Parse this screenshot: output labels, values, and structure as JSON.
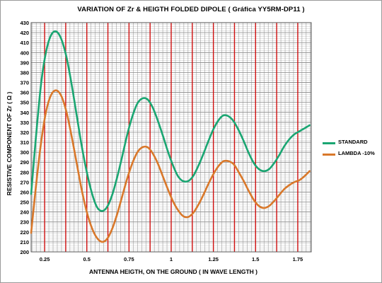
{
  "chart_data": {
    "type": "line",
    "title": "VARIATION OF Zr & HEIGTH FOLDED DIPOLE  ( Gráfica YY5RM-DP11 )",
    "xlabel": "ANTENNA HEIGTH, ON THE GROUND  ( IN WAVE LENGTH )",
    "ylabel": "RESISTIVE COMPONENT OF Zr ( Ω )",
    "xlim": [
      0.17,
      1.83
    ],
    "ylim": [
      200,
      430
    ],
    "x_ticks": [
      0.25,
      0.5,
      0.75,
      1,
      1.25,
      1.5,
      1.75
    ],
    "x_tick_labels": [
      "0.25",
      "0.5",
      "0.75",
      "1",
      "1.25",
      "1.5",
      "1.75"
    ],
    "y_ticks": [
      200,
      210,
      220,
      230,
      240,
      250,
      260,
      270,
      280,
      290,
      300,
      310,
      320,
      330,
      340,
      350,
      360,
      370,
      380,
      390,
      400,
      410,
      420,
      430
    ],
    "grid": true,
    "legend_position": "right",
    "series": [
      {
        "name": "STANDARD",
        "color": "#1aa672",
        "x": [
          0.17,
          0.2,
          0.23,
          0.26,
          0.29,
          0.32,
          0.35,
          0.38,
          0.41,
          0.44,
          0.47,
          0.5,
          0.53,
          0.56,
          0.59,
          0.62,
          0.65,
          0.68,
          0.71,
          0.74,
          0.77,
          0.8,
          0.83,
          0.86,
          0.89,
          0.92,
          0.95,
          0.98,
          1.01,
          1.04,
          1.07,
          1.1,
          1.13,
          1.16,
          1.19,
          1.22,
          1.25,
          1.28,
          1.31,
          1.34,
          1.37,
          1.4,
          1.43,
          1.46,
          1.49,
          1.52,
          1.55,
          1.58,
          1.61,
          1.64,
          1.67,
          1.7,
          1.73,
          1.76,
          1.79,
          1.82
        ],
        "values": [
          258,
          318,
          370,
          402,
          418,
          421,
          413,
          395,
          368,
          337,
          306,
          280,
          259,
          245,
          241,
          245,
          257,
          275,
          296,
          318,
          336,
          349,
          354,
          353,
          345,
          332,
          317,
          301,
          287,
          276,
          271,
          271,
          276,
          286,
          298,
          311,
          323,
          332,
          337,
          336,
          331,
          322,
          311,
          299,
          289,
          283,
          281,
          283,
          289,
          297,
          306,
          313,
          318,
          321,
          324,
          327
        ],
        "line": true
      },
      {
        "name": "LAMBDA -10%",
        "color": "#d9782a",
        "x": [
          0.17,
          0.2,
          0.23,
          0.26,
          0.29,
          0.32,
          0.35,
          0.38,
          0.41,
          0.44,
          0.47,
          0.5,
          0.53,
          0.56,
          0.59,
          0.62,
          0.65,
          0.68,
          0.71,
          0.74,
          0.77,
          0.8,
          0.83,
          0.86,
          0.89,
          0.92,
          0.95,
          0.98,
          1.01,
          1.04,
          1.07,
          1.1,
          1.13,
          1.16,
          1.19,
          1.22,
          1.25,
          1.28,
          1.31,
          1.34,
          1.37,
          1.4,
          1.43,
          1.46,
          1.49,
          1.52,
          1.55,
          1.58,
          1.61,
          1.64,
          1.67,
          1.7,
          1.73,
          1.76,
          1.79,
          1.82
        ],
        "values": [
          219,
          268,
          311,
          342,
          358,
          362,
          356,
          340,
          316,
          289,
          262,
          240,
          224,
          214,
          210,
          213,
          223,
          238,
          256,
          274,
          289,
          300,
          305,
          305,
          299,
          289,
          276,
          263,
          251,
          242,
          236,
          235,
          239,
          247,
          257,
          268,
          278,
          286,
          291,
          291,
          288,
          280,
          271,
          261,
          252,
          246,
          244,
          246,
          251,
          257,
          263,
          267,
          270,
          272,
          276,
          281
        ],
        "line": true
      }
    ]
  }
}
